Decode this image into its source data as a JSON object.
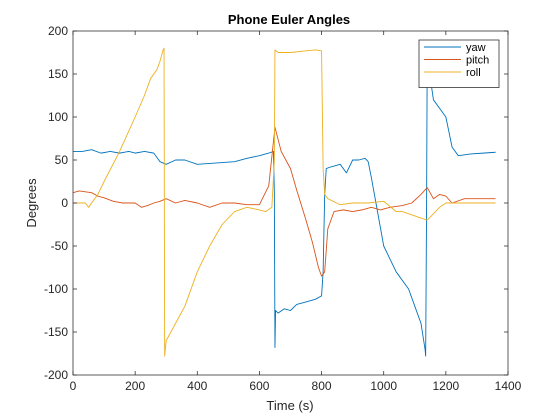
{
  "chart_data": {
    "type": "line",
    "title": "Phone Euler Angles",
    "xlabel": "Time (s)",
    "ylabel": "Degrees",
    "xlim": [
      0,
      1400
    ],
    "ylim": [
      -200,
      200
    ],
    "xticks": [
      0,
      200,
      400,
      600,
      800,
      1000,
      1200,
      1400
    ],
    "yticks": [
      -200,
      -150,
      -100,
      -50,
      0,
      50,
      100,
      150,
      200
    ],
    "grid": false,
    "legend_position": "top-right",
    "series": [
      {
        "name": "yaw",
        "color": "#0072BD",
        "x": [
          0,
          30,
          60,
          90,
          120,
          150,
          180,
          200,
          230,
          260,
          280,
          300,
          330,
          360,
          400,
          440,
          480,
          520,
          560,
          600,
          630,
          645,
          648,
          650,
          652,
          660,
          680,
          700,
          720,
          750,
          780,
          800,
          805,
          810,
          815,
          830,
          860,
          880,
          900,
          920,
          940,
          950,
          960,
          975,
          1000,
          1040,
          1080,
          1100,
          1120,
          1133,
          1135,
          1138,
          1140,
          1160,
          1180,
          1200,
          1220,
          1240,
          1280,
          1320,
          1360
        ],
        "y": [
          60,
          60,
          62,
          58,
          60,
          58,
          60,
          58,
          60,
          58,
          48,
          45,
          50,
          50,
          45,
          46,
          47,
          48,
          52,
          55,
          58,
          60,
          13,
          -168,
          -125,
          -128,
          -123,
          -125,
          -118,
          -115,
          -112,
          -108,
          -80,
          10,
          40,
          42,
          45,
          35,
          50,
          50,
          52,
          48,
          30,
          0,
          -50,
          -80,
          -100,
          -120,
          -140,
          -170,
          -178,
          0,
          170,
          120,
          110,
          100,
          65,
          55,
          57,
          58,
          59
        ]
      },
      {
        "name": "pitch",
        "color": "#D95319",
        "x": [
          0,
          20,
          60,
          80,
          100,
          130,
          160,
          180,
          200,
          220,
          240,
          260,
          280,
          300,
          330,
          360,
          400,
          440,
          480,
          520,
          560,
          600,
          630,
          650,
          670,
          700,
          720,
          750,
          770,
          790,
          800,
          810,
          820,
          840,
          870,
          900,
          930,
          960,
          990,
          1020,
          1060,
          1090,
          1120,
          1140,
          1160,
          1180,
          1200,
          1220,
          1260,
          1300,
          1360
        ],
        "y": [
          12,
          14,
          12,
          8,
          6,
          2,
          0,
          0,
          0,
          -5,
          -3,
          0,
          2,
          5,
          0,
          3,
          0,
          -5,
          0,
          0,
          -2,
          -2,
          20,
          88,
          60,
          40,
          15,
          -20,
          -45,
          -75,
          -85,
          -80,
          -30,
          -10,
          -8,
          -10,
          -8,
          -5,
          -8,
          -5,
          -3,
          0,
          10,
          18,
          5,
          10,
          8,
          0,
          5,
          5,
          5
        ]
      },
      {
        "name": "roll",
        "color": "#EDB120",
        "x": [
          0,
          40,
          50,
          80,
          100,
          150,
          200,
          230,
          250,
          270,
          280,
          290,
          293,
          295,
          300,
          330,
          360,
          400,
          440,
          480,
          520,
          560,
          600,
          620,
          640,
          648,
          650,
          660,
          700,
          750,
          780,
          800,
          805,
          810,
          820,
          860,
          900,
          950,
          1000,
          1040,
          1060,
          1100,
          1140,
          1180,
          1200,
          1260,
          1360
        ],
        "y": [
          0,
          0,
          -5,
          10,
          25,
          60,
          100,
          125,
          145,
          155,
          165,
          178,
          180,
          -178,
          -160,
          -140,
          -120,
          -80,
          -50,
          -25,
          -10,
          -5,
          -8,
          -10,
          -5,
          50,
          178,
          175,
          175,
          177,
          178,
          177,
          40,
          10,
          5,
          -2,
          0,
          0,
          2,
          -10,
          -10,
          -15,
          -20,
          -5,
          0,
          0,
          0
        ]
      }
    ]
  }
}
